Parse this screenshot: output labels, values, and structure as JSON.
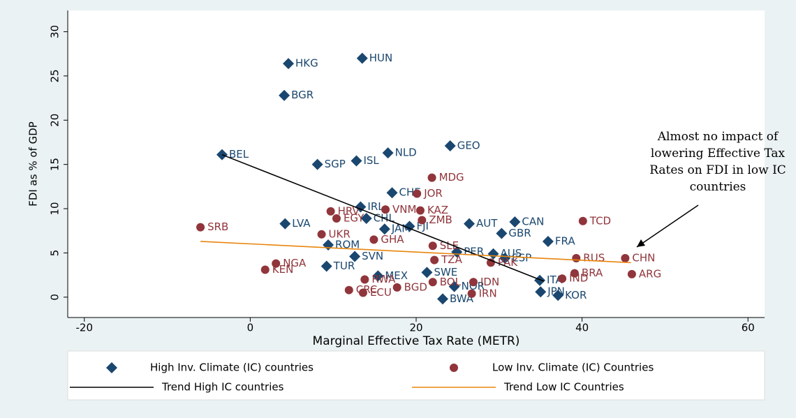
{
  "chart_data": {
    "type": "scatter",
    "xlabel": "Marginal Effective Tax Rate (METR)",
    "ylabel": "FDI as % of GDP",
    "annotation": "Almost no impact of lowering Effective Tax Rates on FDI in low IC countries",
    "xlim": [
      -22,
      62
    ],
    "ylim": [
      -2.3,
      32.4
    ],
    "xticks": [
      -20,
      0,
      20,
      40,
      60
    ],
    "yticks": [
      0,
      5,
      10,
      15,
      20,
      25,
      30
    ],
    "grid": false,
    "series": [
      {
        "name": "High Inv. Climate (IC) countries",
        "color": "#1a476f",
        "marker": "diamond",
        "labels": [
          "HKG",
          "HUN",
          "BGR",
          "BEL",
          "SGP",
          "ISL",
          "NLD",
          "GEO",
          "CHE",
          "IRL",
          "CHL",
          "LVA",
          "JAM",
          "FJI",
          "AUT",
          "CAN",
          "GBR",
          "FRA",
          "ROM",
          "TUR",
          "SVN",
          "PER",
          "AUS",
          "ESP",
          "SWE",
          "MEX",
          "NOR",
          "ITA",
          "JPN",
          "KOR",
          "BWA"
        ],
        "x": [
          4.6,
          13.5,
          4.1,
          -3.4,
          8.1,
          12.8,
          16.6,
          24.1,
          17.1,
          13.3,
          14.0,
          4.2,
          16.2,
          19.2,
          26.4,
          31.9,
          30.3,
          35.9,
          9.4,
          9.2,
          12.6,
          24.9,
          29.3,
          30.7,
          21.3,
          15.4,
          24.6,
          34.9,
          35.0,
          37.1,
          23.2
        ],
        "values": [
          26.4,
          27.0,
          22.8,
          16.1,
          15.0,
          15.4,
          16.3,
          17.1,
          11.8,
          10.2,
          8.9,
          8.3,
          7.7,
          8.0,
          8.3,
          8.5,
          7.2,
          6.3,
          5.9,
          3.5,
          4.6,
          5.1,
          4.9,
          4.4,
          2.8,
          2.4,
          1.2,
          1.9,
          0.6,
          0.2,
          -0.2
        ]
      },
      {
        "name": "Low Inv. Climate (IC) Countries",
        "color": "#90353b",
        "marker": "circle",
        "labels": [
          "MDG",
          "JOR",
          "VNM",
          "KAZ",
          "HRV",
          "EGY",
          "ZMB",
          "TCD",
          "SRB",
          "UKR",
          "GHA",
          "SLE",
          "RUS",
          "CHN",
          "NGA",
          "KEN",
          "TZA",
          "PAK",
          "BRA",
          "ARG",
          "IND",
          "IDN",
          "IRN",
          "BOL",
          "BGD",
          "CRC",
          "ECU",
          "RWA"
        ],
        "x": [
          21.9,
          20.1,
          16.3,
          20.5,
          9.7,
          10.4,
          20.7,
          40.1,
          -6.0,
          8.6,
          14.9,
          22.0,
          39.3,
          45.2,
          3.1,
          1.8,
          22.2,
          29.0,
          39.1,
          46.0,
          37.6,
          26.9,
          26.7,
          22.0,
          17.7,
          11.9,
          13.6,
          13.8
        ],
        "values": [
          13.5,
          11.7,
          9.9,
          9.8,
          9.7,
          8.9,
          8.7,
          8.6,
          7.9,
          7.1,
          6.5,
          5.8,
          4.4,
          4.4,
          3.8,
          3.1,
          4.2,
          3.9,
          2.7,
          2.6,
          2.1,
          1.7,
          0.4,
          1.7,
          1.1,
          0.8,
          0.5,
          2.0
        ]
      },
      {
        "name": "Trend High IC countries",
        "color": "#000000",
        "marker": "line",
        "x": [
          -3.4,
          35.4
        ],
        "values": [
          16.1,
          1.8
        ]
      },
      {
        "name": "Trend Low IC Countries",
        "color": "#e8850c",
        "marker": "line",
        "x": [
          -6.0,
          45.9
        ],
        "values": [
          6.3,
          3.9
        ]
      }
    ]
  }
}
